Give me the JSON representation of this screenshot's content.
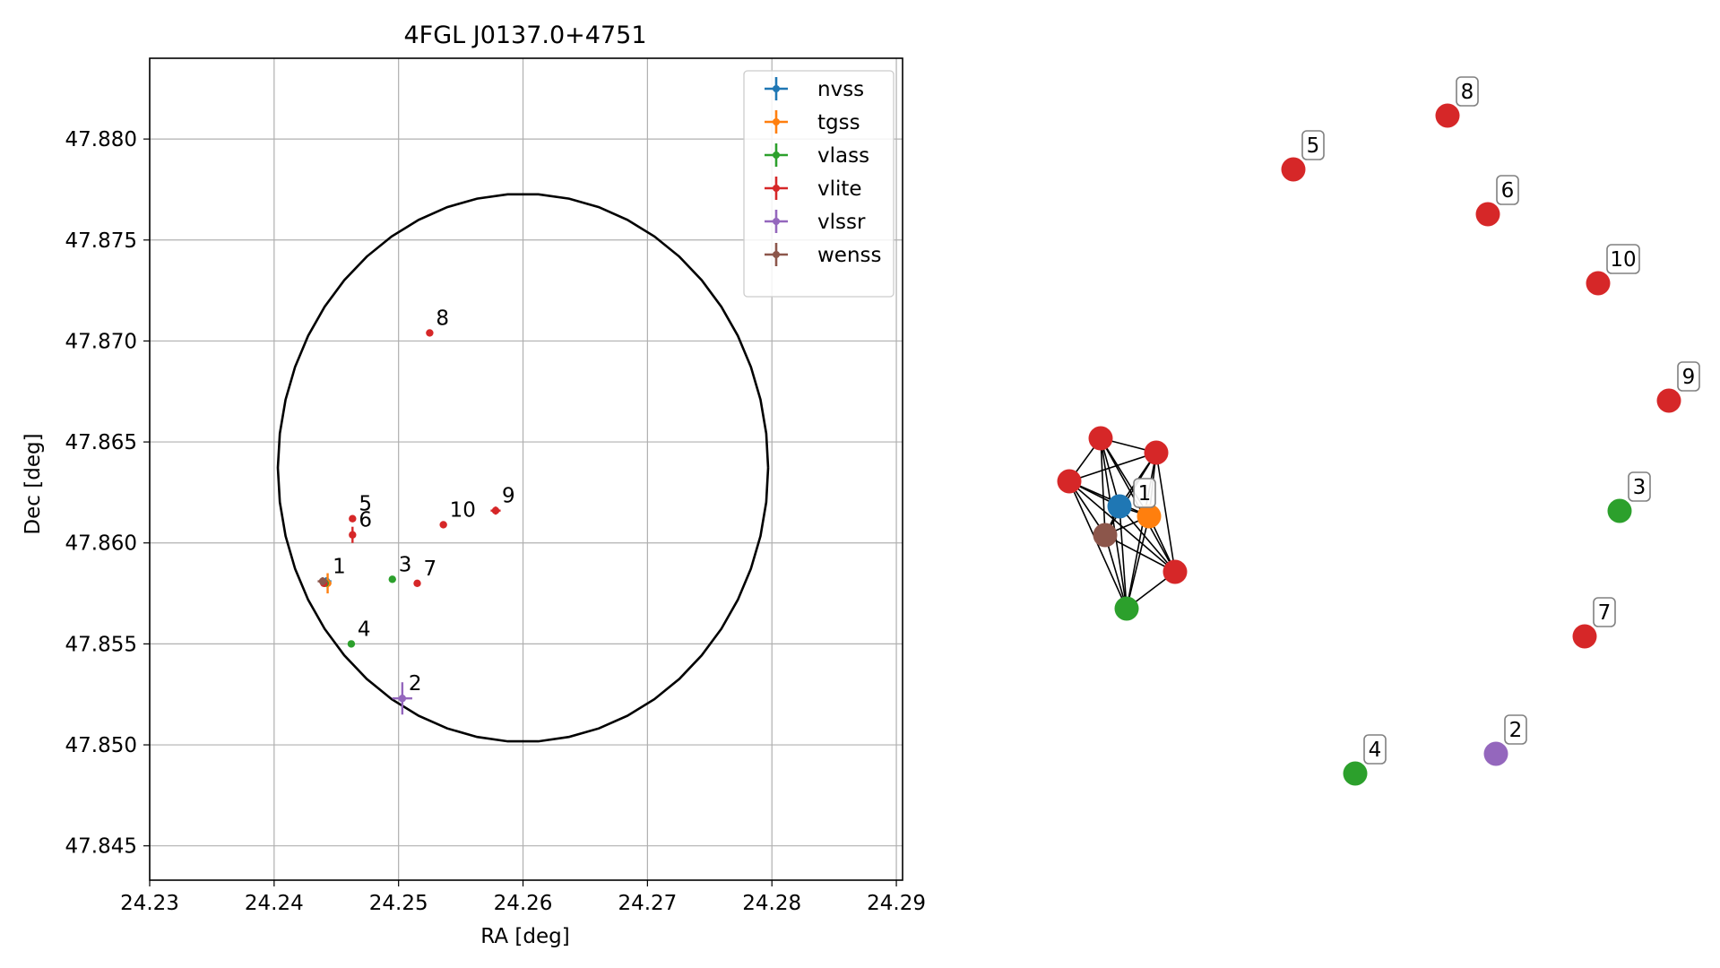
{
  "chart_data": [
    {
      "type": "scatter",
      "title": "4FGL J0137.0+4751",
      "xlabel": "RA [deg]",
      "ylabel": "Dec [deg]",
      "xlim": [
        24.23,
        24.2905
      ],
      "ylim": [
        47.8433,
        47.884
      ],
      "xticks": [
        24.23,
        24.24,
        24.25,
        24.26,
        24.27,
        24.28,
        24.29
      ],
      "xtick_labels": [
        "24.23",
        "24.24",
        "24.25",
        "24.26",
        "24.27",
        "24.28",
        "24.29"
      ],
      "yticks": [
        47.845,
        47.85,
        47.855,
        47.86,
        47.865,
        47.87,
        47.875,
        47.88
      ],
      "ytick_labels": [
        "47.845",
        "47.850",
        "47.855",
        "47.860",
        "47.865",
        "47.870",
        "47.875",
        "47.880"
      ],
      "grid": true,
      "legend_position": "top-right",
      "ellipse": {
        "ra_center": 24.26,
        "dec_center": 47.86372,
        "ra_semi_axis": 0.0197,
        "dec_semi_axis": 0.01357
      },
      "series": [
        {
          "name": "nvss",
          "color": "#1f77b4",
          "points": [
            {
              "id": "1",
              "ra": 24.2442,
              "dec": 47.8581,
              "err_ra": 0.0004,
              "err_dec": 0.0002
            }
          ]
        },
        {
          "name": "tgss",
          "color": "#ff7f0e",
          "points": [
            {
              "id": "1",
              "ra": 24.2443,
              "dec": 47.858,
              "err_ra": 0.0003,
              "err_dec": 0.0005
            }
          ]
        },
        {
          "name": "vlass",
          "color": "#2ca02c",
          "points": [
            {
              "id": "1",
              "ra": 24.2441,
              "dec": 47.858,
              "err_ra": 0.0001,
              "err_dec": 0.0001
            },
            {
              "id": "3",
              "ra": 24.2495,
              "dec": 47.8582,
              "err_ra": 0.0001,
              "err_dec": 0.0001
            },
            {
              "id": "4",
              "ra": 24.2462,
              "dec": 47.855,
              "err_ra": 0.0001,
              "err_dec": 0.0001
            }
          ]
        },
        {
          "name": "vlite",
          "color": "#d62728",
          "points": [
            {
              "id": "1",
              "ra": 24.244,
              "dec": 47.858,
              "err_ra": 0.0003,
              "err_dec": 0.0001
            },
            {
              "id": "5",
              "ra": 24.2463,
              "dec": 47.8612,
              "err_ra": 0.0001,
              "err_dec": 0.0001
            },
            {
              "id": "6",
              "ra": 24.2463,
              "dec": 47.8604,
              "err_ra": 0.0001,
              "err_dec": 0.0004
            },
            {
              "id": "7",
              "ra": 24.2515,
              "dec": 47.858,
              "err_ra": 0.0001,
              "err_dec": 0.0001
            },
            {
              "id": "8",
              "ra": 24.2525,
              "dec": 47.8704,
              "err_ra": 0.0001,
              "err_dec": 0.0001
            },
            {
              "id": "9",
              "ra": 24.2578,
              "dec": 47.8616,
              "err_ra": 0.0004,
              "err_dec": 0.0002
            },
            {
              "id": "10",
              "ra": 24.2536,
              "dec": 47.8609,
              "err_ra": 0.0001,
              "err_dec": 0.0001
            }
          ]
        },
        {
          "name": "vlssr",
          "color": "#9467bd",
          "points": [
            {
              "id": "2",
              "ra": 24.2503,
              "dec": 47.8523,
              "err_ra": 0.0008,
              "err_dec": 0.0008
            }
          ]
        },
        {
          "name": "wenss",
          "color": "#8c564b",
          "points": [
            {
              "id": "1",
              "ra": 24.2439,
              "dec": 47.8581,
              "err_ra": 0.0004,
              "err_dec": 0.0002
            }
          ]
        }
      ],
      "labels": [
        {
          "text": "1",
          "ra": 24.2442,
          "dec": 47.8581
        },
        {
          "text": "2",
          "ra": 24.2503,
          "dec": 47.8523
        },
        {
          "text": "3",
          "ra": 24.2495,
          "dec": 47.8582
        },
        {
          "text": "4",
          "ra": 24.2462,
          "dec": 47.855
        },
        {
          "text": "5",
          "ra": 24.2463,
          "dec": 47.8612
        },
        {
          "text": "6",
          "ra": 24.2463,
          "dec": 47.8604
        },
        {
          "text": "7",
          "ra": 24.2515,
          "dec": 47.858
        },
        {
          "text": "8",
          "ra": 24.2525,
          "dec": 47.8704
        },
        {
          "text": "9",
          "ra": 24.2578,
          "dec": 47.8616
        },
        {
          "text": "10",
          "ra": 24.2536,
          "dec": 47.8609
        }
      ]
    },
    {
      "type": "network",
      "nodes": [
        {
          "id": "nvss-1",
          "color": "#1f77b4"
        },
        {
          "id": "tgss-1",
          "color": "#ff7f0e"
        },
        {
          "id": "wenss-1",
          "color": "#8c564b"
        },
        {
          "id": "vlass-1",
          "color": "#2ca02c"
        },
        {
          "id": "vlite-1a",
          "color": "#d62728"
        },
        {
          "id": "vlite-1b",
          "color": "#d62728"
        },
        {
          "id": "vlite-1c",
          "color": "#d62728"
        },
        {
          "id": "vlite-1d",
          "color": "#d62728"
        },
        {
          "id": "vlite-5",
          "color": "#d62728",
          "label": "5"
        },
        {
          "id": "vlite-8",
          "color": "#d62728",
          "label": "8"
        },
        {
          "id": "vlite-6",
          "color": "#d62728",
          "label": "6"
        },
        {
          "id": "vlite-10",
          "color": "#d62728",
          "label": "10"
        },
        {
          "id": "vlite-9",
          "color": "#d62728",
          "label": "9"
        },
        {
          "id": "vlass-3",
          "color": "#2ca02c",
          "label": "3"
        },
        {
          "id": "vlite-7",
          "color": "#d62728",
          "label": "7"
        },
        {
          "id": "vlssr-2",
          "color": "#9467bd",
          "label": "2"
        },
        {
          "id": "vlass-4",
          "color": "#2ca02c",
          "label": "4"
        }
      ],
      "cluster_label": "1"
    }
  ]
}
